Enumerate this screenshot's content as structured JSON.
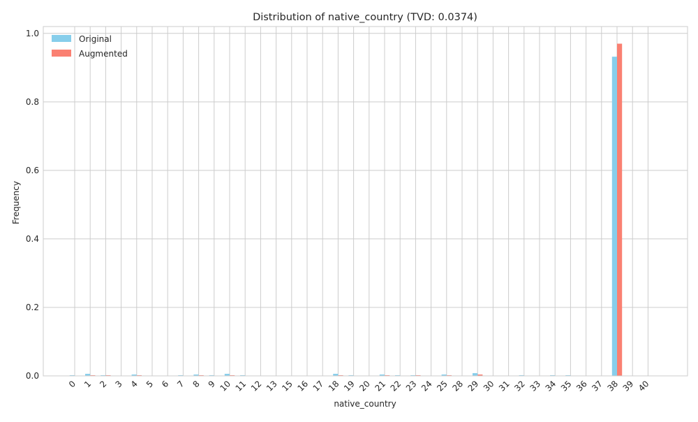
{
  "chart_data": {
    "type": "bar",
    "title": "Distribution of native_country (TVD: 0.0374)",
    "xlabel": "native_country",
    "ylabel": "Frequency",
    "ylim": [
      0,
      1.02
    ],
    "yticks": [
      "0.0",
      "0.2",
      "0.4",
      "0.6",
      "0.8",
      "1.0"
    ],
    "ytick_values": [
      0,
      0.2,
      0.4,
      0.6,
      0.8,
      1.0
    ],
    "grid": true,
    "legend_position": "top-left",
    "categories": [
      "0",
      "1",
      "2",
      "3",
      "4",
      "5",
      "6",
      "7",
      "8",
      "9",
      "10",
      "11",
      "12",
      "13",
      "15",
      "16",
      "17",
      "18",
      "19",
      "20",
      "21",
      "22",
      "23",
      "24",
      "25",
      "28",
      "29",
      "30",
      "31",
      "32",
      "33",
      "34",
      "35",
      "36",
      "37",
      "38",
      "39",
      "40"
    ],
    "series": [
      {
        "name": "Original",
        "color": "#87ceeb",
        "values": [
          0.002,
          0.006,
          0.002,
          0.0,
          0.004,
          0.0,
          0.0,
          0.002,
          0.004,
          0.002,
          0.006,
          0.002,
          0.0,
          0.0,
          0.0,
          0.0,
          0.0,
          0.006,
          0.002,
          0.0,
          0.004,
          0.002,
          0.002,
          0.0,
          0.004,
          0.0,
          0.008,
          0.0,
          0.0,
          0.002,
          0.0,
          0.002,
          0.002,
          0.0,
          0.0,
          0.932,
          0.0,
          0.0
        ]
      },
      {
        "name": "Augmented",
        "color": "#fa8072",
        "values": [
          0.0,
          0.002,
          0.002,
          0.0,
          0.002,
          0.0,
          0.0,
          0.0,
          0.002,
          0.0,
          0.002,
          0.0,
          0.0,
          0.0,
          0.0,
          0.0,
          0.0,
          0.002,
          0.0,
          0.0,
          0.002,
          0.0,
          0.002,
          0.0,
          0.002,
          0.0,
          0.004,
          0.0,
          0.0,
          0.0,
          0.0,
          0.0,
          0.0,
          0.0,
          0.0,
          0.97,
          0.0,
          0.0
        ]
      }
    ]
  }
}
